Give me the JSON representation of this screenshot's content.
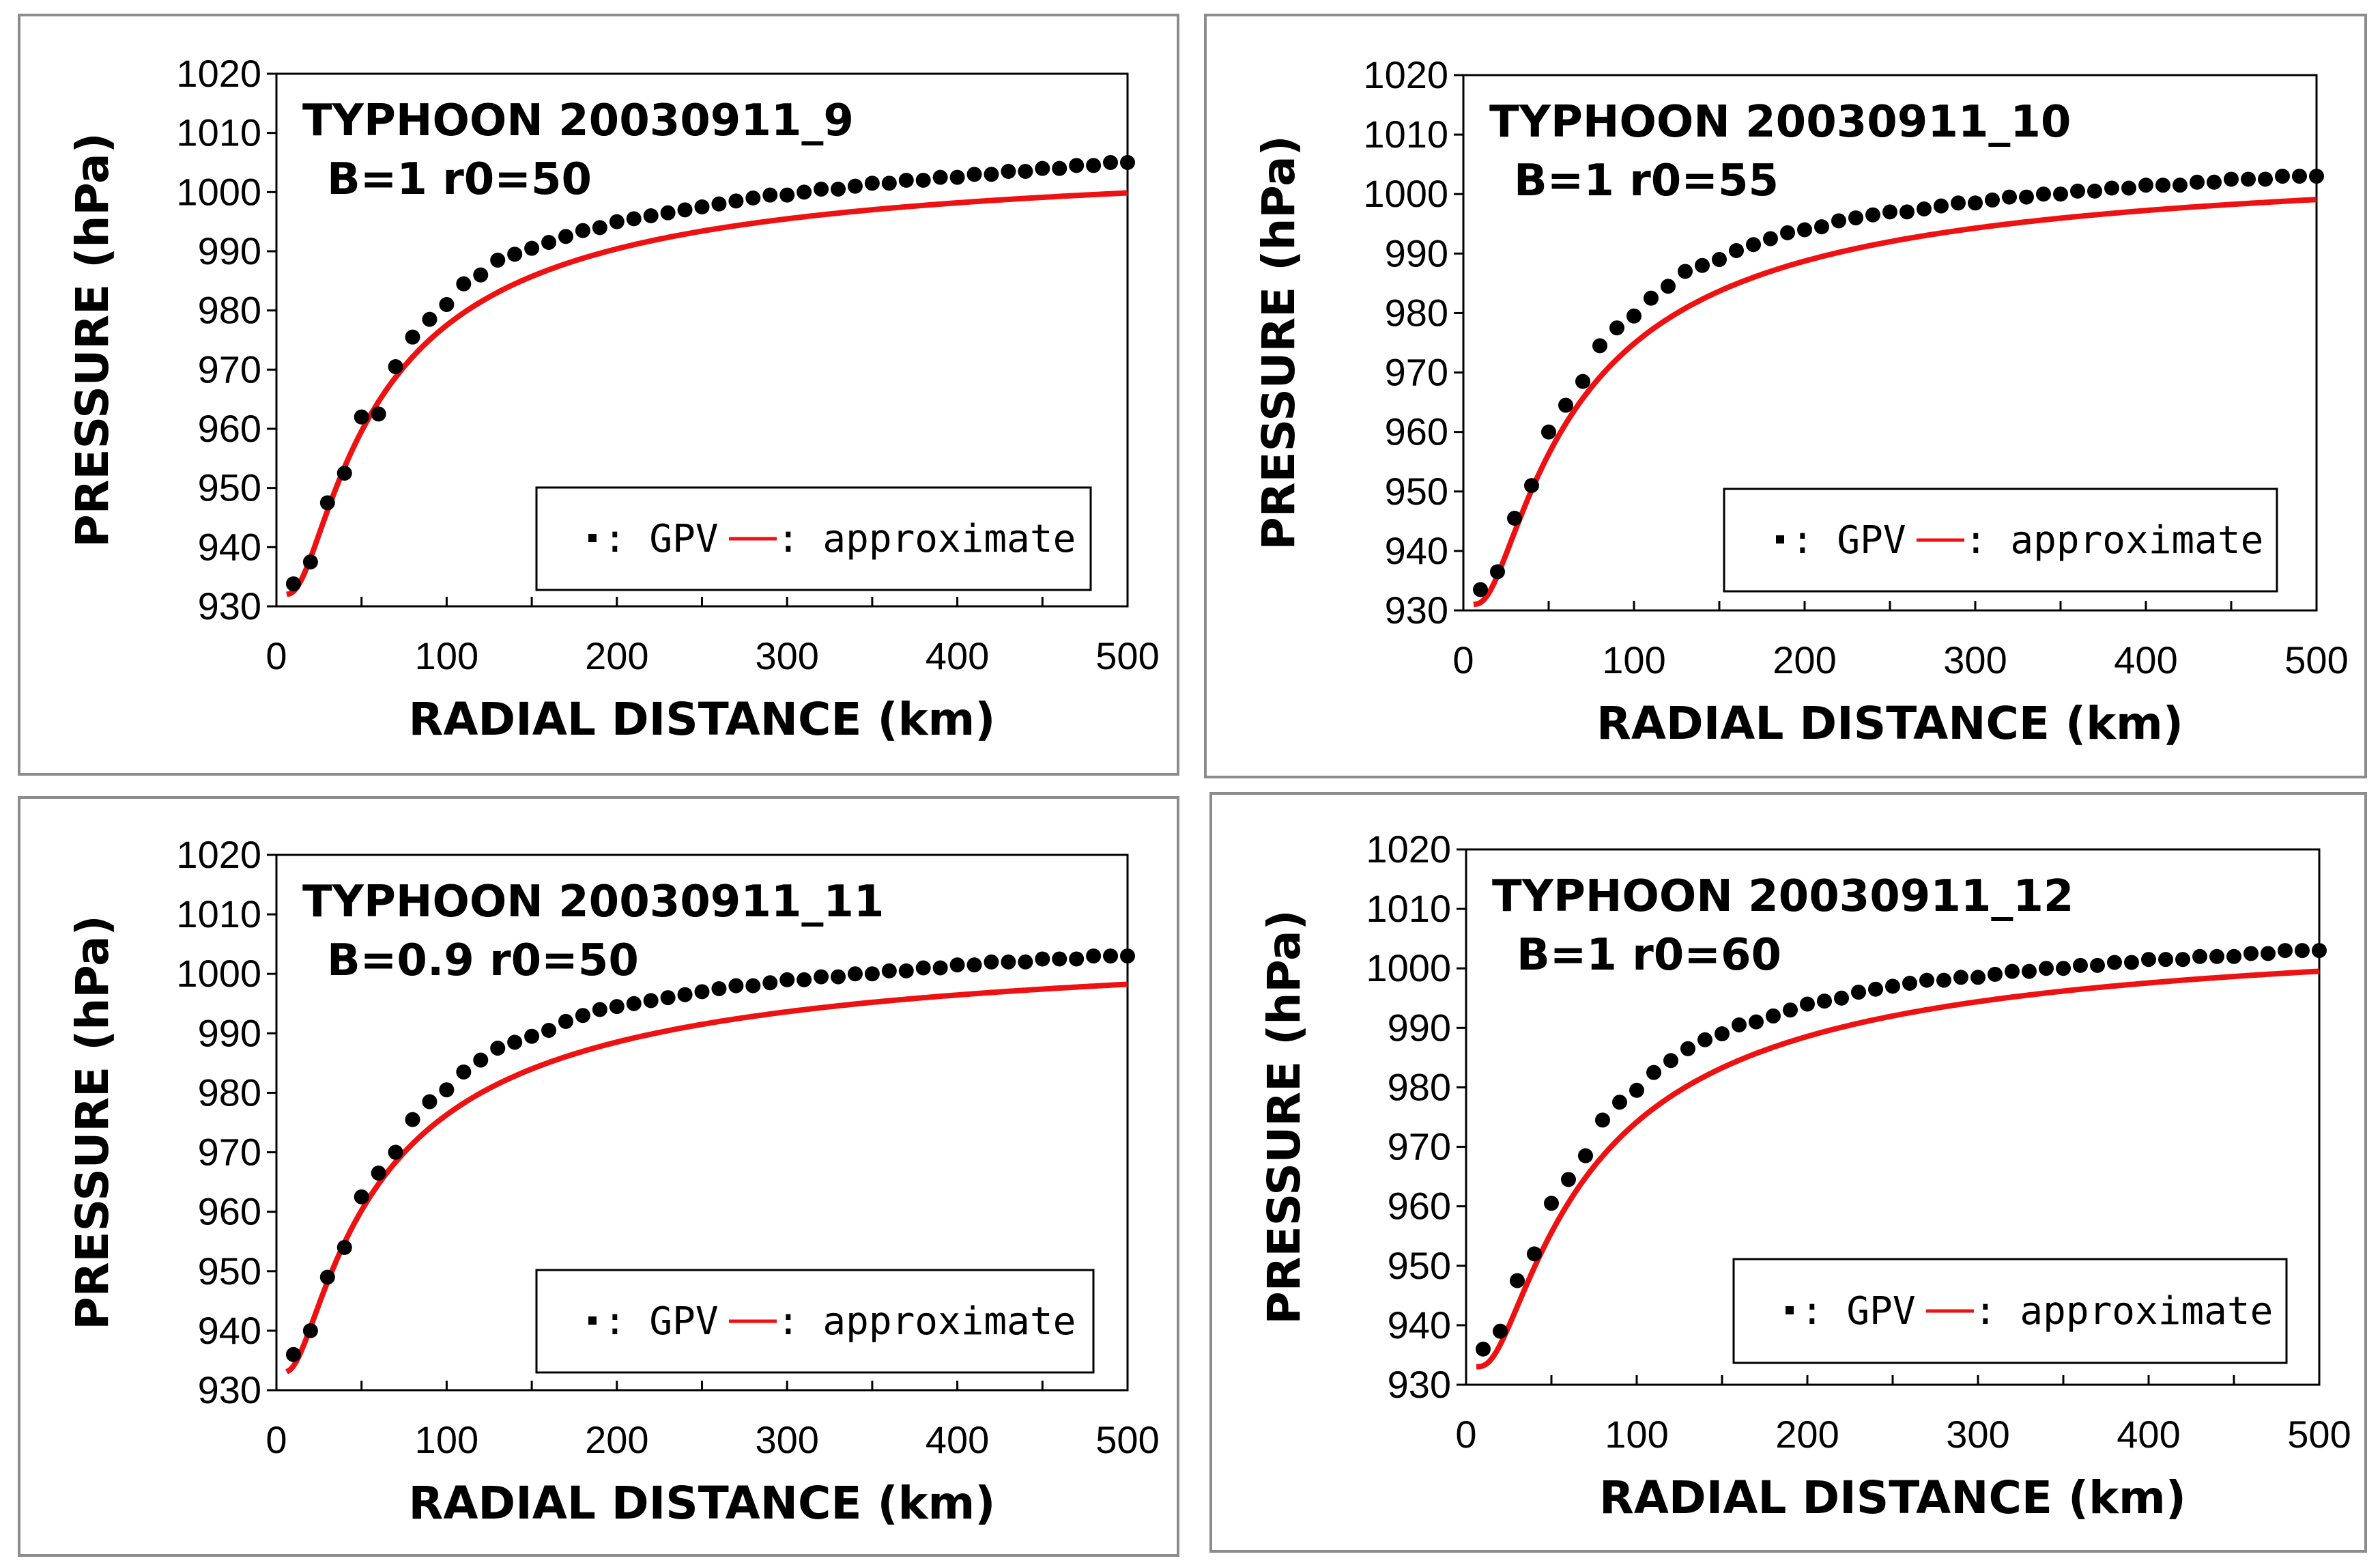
{
  "chart_data": [
    {
      "type": "line",
      "title": "TYPHOON 20030911_9",
      "parameters": "B=1  r0=50",
      "xlabel": "RADIAL DISTANCE (km)",
      "ylabel": "PRESSURE (hPa)",
      "xlim": [
        0,
        500
      ],
      "ylim": [
        930,
        1020
      ],
      "xticks": [
        0,
        100,
        200,
        300,
        400,
        500
      ],
      "yticks": [
        930,
        940,
        950,
        960,
        970,
        980,
        990,
        1000,
        1010,
        1020
      ],
      "legend": {
        "position": "bottom-right",
        "gpv_label": ": GPV",
        "approx_label": ": approximate"
      },
      "model": {
        "pc": 932,
        "pn": 1007,
        "B": 1,
        "r0": 50
      },
      "series": [
        {
          "name": "GPV",
          "style": "points",
          "x": [
            10,
            20,
            30,
            40,
            50,
            60,
            70,
            80,
            90,
            100,
            110,
            120,
            130,
            140,
            150,
            160,
            170,
            180,
            190,
            200,
            210,
            220,
            230,
            240,
            250,
            260,
            270,
            280,
            290,
            300,
            310,
            320,
            330,
            340,
            350,
            360,
            370,
            380,
            390,
            400,
            410,
            420,
            430,
            440,
            450,
            460,
            470,
            480,
            490,
            500
          ],
          "y": [
            933.8,
            937.5,
            947.5,
            952.5,
            962,
            962.5,
            970.5,
            975.5,
            978.5,
            981,
            984.5,
            986,
            988.5,
            989.5,
            990.5,
            991.5,
            992.5,
            993.5,
            994,
            995,
            995.5,
            996,
            996.5,
            997,
            997.5,
            998,
            998.5,
            999,
            999.5,
            999.5,
            1000,
            1000.5,
            1000.5,
            1001,
            1001.5,
            1001.5,
            1002,
            1002,
            1002.5,
            1002.5,
            1003,
            1003,
            1003.5,
            1003.5,
            1004,
            1004,
            1004.5,
            1004.5,
            1005,
            1005
          ]
        },
        {
          "name": "approximate",
          "style": "line",
          "color": "#ee1111"
        }
      ]
    },
    {
      "type": "line",
      "title": "TYPHOON 20030911_10",
      "parameters": "B=1  r0=55",
      "xlabel": "RADIAL DISTANCE (km)",
      "ylabel": "PRESSURE (hPa)",
      "xlim": [
        0,
        500
      ],
      "ylim": [
        930,
        1020
      ],
      "xticks": [
        0,
        100,
        200,
        300,
        400,
        500
      ],
      "yticks": [
        930,
        940,
        950,
        960,
        970,
        980,
        990,
        1000,
        1010,
        1020
      ],
      "legend": {
        "position": "bottom-right",
        "gpv_label": ": GPV",
        "approx_label": ": approximate"
      },
      "model": {
        "pc": 931,
        "pn": 1007,
        "B": 1,
        "r0": 55
      },
      "series": [
        {
          "name": "GPV",
          "style": "points",
          "x": [
            10,
            20,
            30,
            40,
            50,
            60,
            70,
            80,
            90,
            100,
            110,
            120,
            130,
            140,
            150,
            160,
            170,
            180,
            190,
            200,
            210,
            220,
            230,
            240,
            250,
            260,
            270,
            280,
            290,
            300,
            310,
            320,
            330,
            340,
            350,
            360,
            370,
            380,
            390,
            400,
            410,
            420,
            430,
            440,
            450,
            460,
            470,
            480,
            490,
            500
          ],
          "y": [
            933.5,
            936.5,
            945.5,
            951,
            960,
            964.5,
            968.5,
            974.5,
            977.5,
            979.5,
            982.5,
            984.5,
            987,
            988,
            989,
            990.5,
            991.5,
            992.5,
            993.5,
            994,
            994.5,
            995.5,
            996,
            996.5,
            997,
            997,
            997.5,
            998,
            998.5,
            998.5,
            999,
            999.5,
            999.5,
            1000,
            1000,
            1000.5,
            1000.5,
            1001,
            1001,
            1001.5,
            1001.5,
            1001.5,
            1002,
            1002,
            1002.5,
            1002.5,
            1002.5,
            1003,
            1003,
            1003
          ]
        },
        {
          "name": "approximate",
          "style": "line",
          "color": "#ee1111"
        }
      ]
    },
    {
      "type": "line",
      "title": "TYPHOON 20030911_11",
      "parameters": "B=0.9  r0=50",
      "xlabel": "RADIAL DISTANCE (km)",
      "ylabel": "PRESSURE (hPa)",
      "xlim": [
        0,
        500
      ],
      "ylim": [
        930,
        1020
      ],
      "xticks": [
        0,
        100,
        200,
        300,
        400,
        500
      ],
      "yticks": [
        930,
        940,
        950,
        960,
        970,
        980,
        990,
        1000,
        1010,
        1020
      ],
      "legend": {
        "position": "bottom-right",
        "gpv_label": ": GPV",
        "approx_label": ": approximate"
      },
      "model": {
        "pc": 933,
        "pn": 1007,
        "B": 0.9,
        "r0": 50
      },
      "series": [
        {
          "name": "GPV",
          "style": "points",
          "x": [
            10,
            20,
            30,
            40,
            50,
            60,
            70,
            80,
            90,
            100,
            110,
            120,
            130,
            140,
            150,
            160,
            170,
            180,
            190,
            200,
            210,
            220,
            230,
            240,
            250,
            260,
            270,
            280,
            290,
            300,
            310,
            320,
            330,
            340,
            350,
            360,
            370,
            380,
            390,
            400,
            410,
            420,
            430,
            440,
            450,
            460,
            470,
            480,
            490,
            500
          ],
          "y": [
            936,
            940,
            949,
            954,
            962.5,
            966.5,
            970,
            975.5,
            978.5,
            980.5,
            983.5,
            985.5,
            987.5,
            988.5,
            989.5,
            990.5,
            992,
            993,
            994,
            994.5,
            995,
            995.5,
            996,
            996.5,
            997,
            997.5,
            998,
            998,
            998.5,
            999,
            999,
            999.5,
            999.5,
            1000,
            1000,
            1000.5,
            1000.5,
            1001,
            1001,
            1001.5,
            1001.5,
            1002,
            1002,
            1002,
            1002.5,
            1002.5,
            1002.5,
            1003,
            1003,
            1003
          ]
        },
        {
          "name": "approximate",
          "style": "line",
          "color": "#ee1111"
        }
      ]
    },
    {
      "type": "line",
      "title": "TYPHOON 20030911_12",
      "parameters": "B=1  r0=60",
      "xlabel": "RADIAL DISTANCE (km)",
      "ylabel": "PRESSURE (hPa)",
      "xlim": [
        0,
        500
      ],
      "ylim": [
        930,
        1020
      ],
      "xticks": [
        0,
        100,
        200,
        300,
        400,
        500
      ],
      "yticks": [
        930,
        940,
        950,
        960,
        970,
        980,
        990,
        1000,
        1010,
        1020
      ],
      "legend": {
        "position": "bottom-right",
        "gpv_label": ": GPV",
        "approx_label": ": approximate"
      },
      "model": {
        "pc": 933,
        "pn": 1008,
        "B": 1,
        "r0": 60
      },
      "series": [
        {
          "name": "GPV",
          "style": "points",
          "x": [
            10,
            20,
            30,
            40,
            50,
            60,
            70,
            80,
            90,
            100,
            110,
            120,
            130,
            140,
            150,
            160,
            170,
            180,
            190,
            200,
            210,
            220,
            230,
            240,
            250,
            260,
            270,
            280,
            290,
            300,
            310,
            320,
            330,
            340,
            350,
            360,
            370,
            380,
            390,
            400,
            410,
            420,
            430,
            440,
            450,
            460,
            470,
            480,
            490,
            500
          ],
          "y": [
            936,
            939,
            947.5,
            952,
            960.5,
            964.5,
            968.5,
            974.5,
            977.5,
            979.5,
            982.5,
            984.5,
            986.5,
            988,
            989,
            990.5,
            991,
            992,
            993,
            994,
            994.5,
            995,
            996,
            996.5,
            997,
            997.5,
            998,
            998,
            998.5,
            998.5,
            999,
            999.5,
            999.5,
            1000,
            1000,
            1000.5,
            1000.5,
            1001,
            1001,
            1001.5,
            1001.5,
            1001.5,
            1002,
            1002,
            1002,
            1002.5,
            1002.5,
            1003,
            1003,
            1003
          ]
        },
        {
          "name": "approximate",
          "style": "line",
          "color": "#ee1111"
        }
      ]
    }
  ]
}
